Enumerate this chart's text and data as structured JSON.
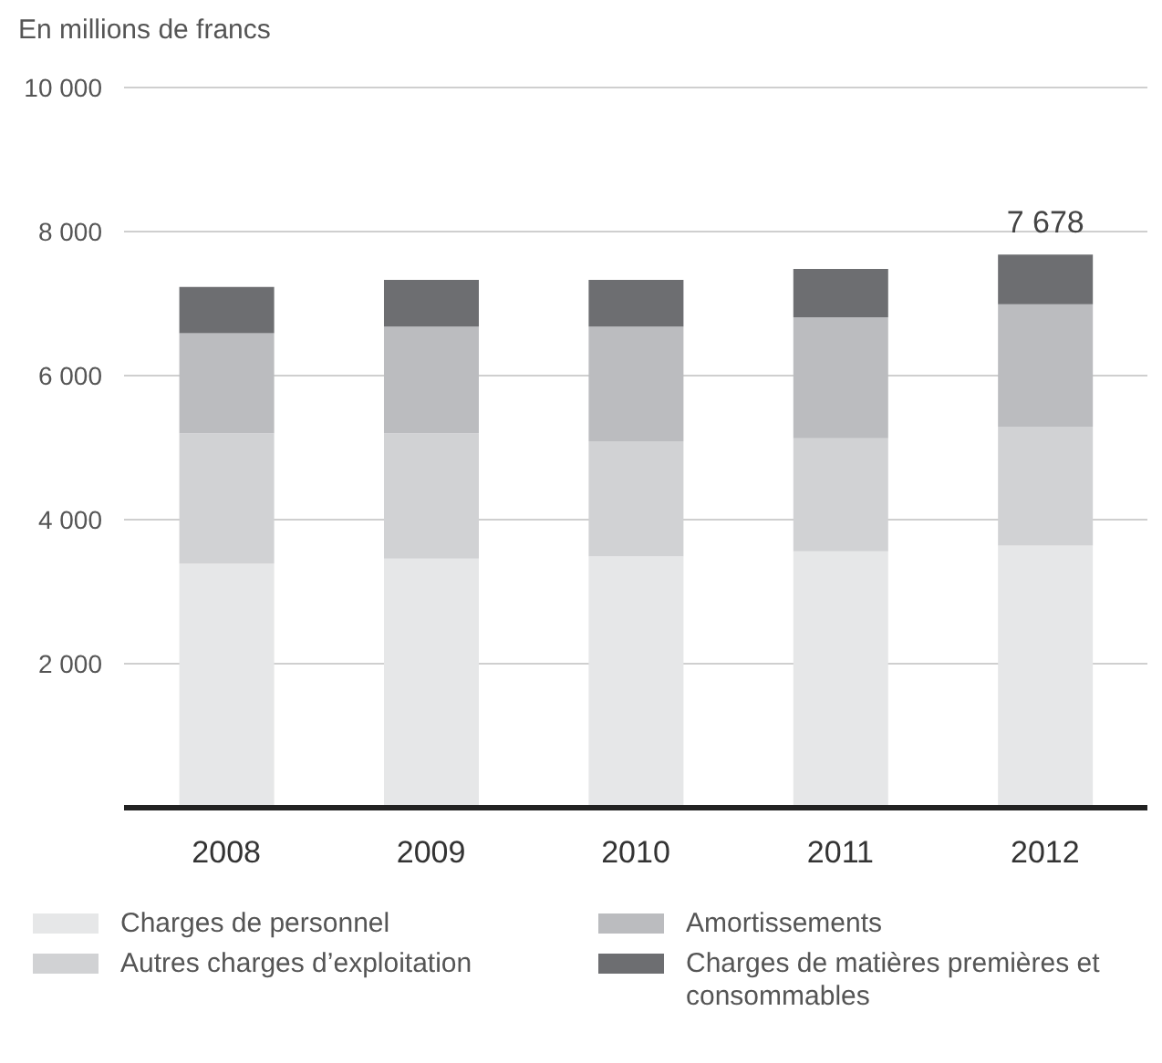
{
  "chart_data": {
    "type": "bar",
    "stacked": true,
    "ylabel": "En millions de francs",
    "categories": [
      "2008",
      "2009",
      "2010",
      "2011",
      "2012"
    ],
    "series": [
      {
        "name": "Charges de personnel",
        "color": "#e6e7e8",
        "values": [
          3390,
          3460,
          3490,
          3560,
          3640
        ]
      },
      {
        "name": "Autres charges d’exploitation",
        "color": "#d1d2d4",
        "values": [
          1810,
          1740,
          1600,
          1570,
          1650
        ]
      },
      {
        "name": "Amortissements",
        "color": "#bbbcbf",
        "values": [
          1390,
          1480,
          1590,
          1680,
          1700
        ]
      },
      {
        "name": "Charges de matières premières et consommables",
        "color": "#6d6e71",
        "values": [
          640,
          650,
          650,
          670,
          690
        ]
      }
    ],
    "totals": [
      null,
      null,
      null,
      null,
      "7 678"
    ],
    "ylim": [
      0,
      10000
    ],
    "yticks": [
      {
        "value": 2000,
        "label": "2 000"
      },
      {
        "value": 4000,
        "label": "4 000"
      },
      {
        "value": 6000,
        "label": "6 000"
      },
      {
        "value": 8000,
        "label": "8 000"
      },
      {
        "value": 10000,
        "label": "10 000"
      }
    ],
    "grid": "y",
    "legend": "bottom"
  }
}
